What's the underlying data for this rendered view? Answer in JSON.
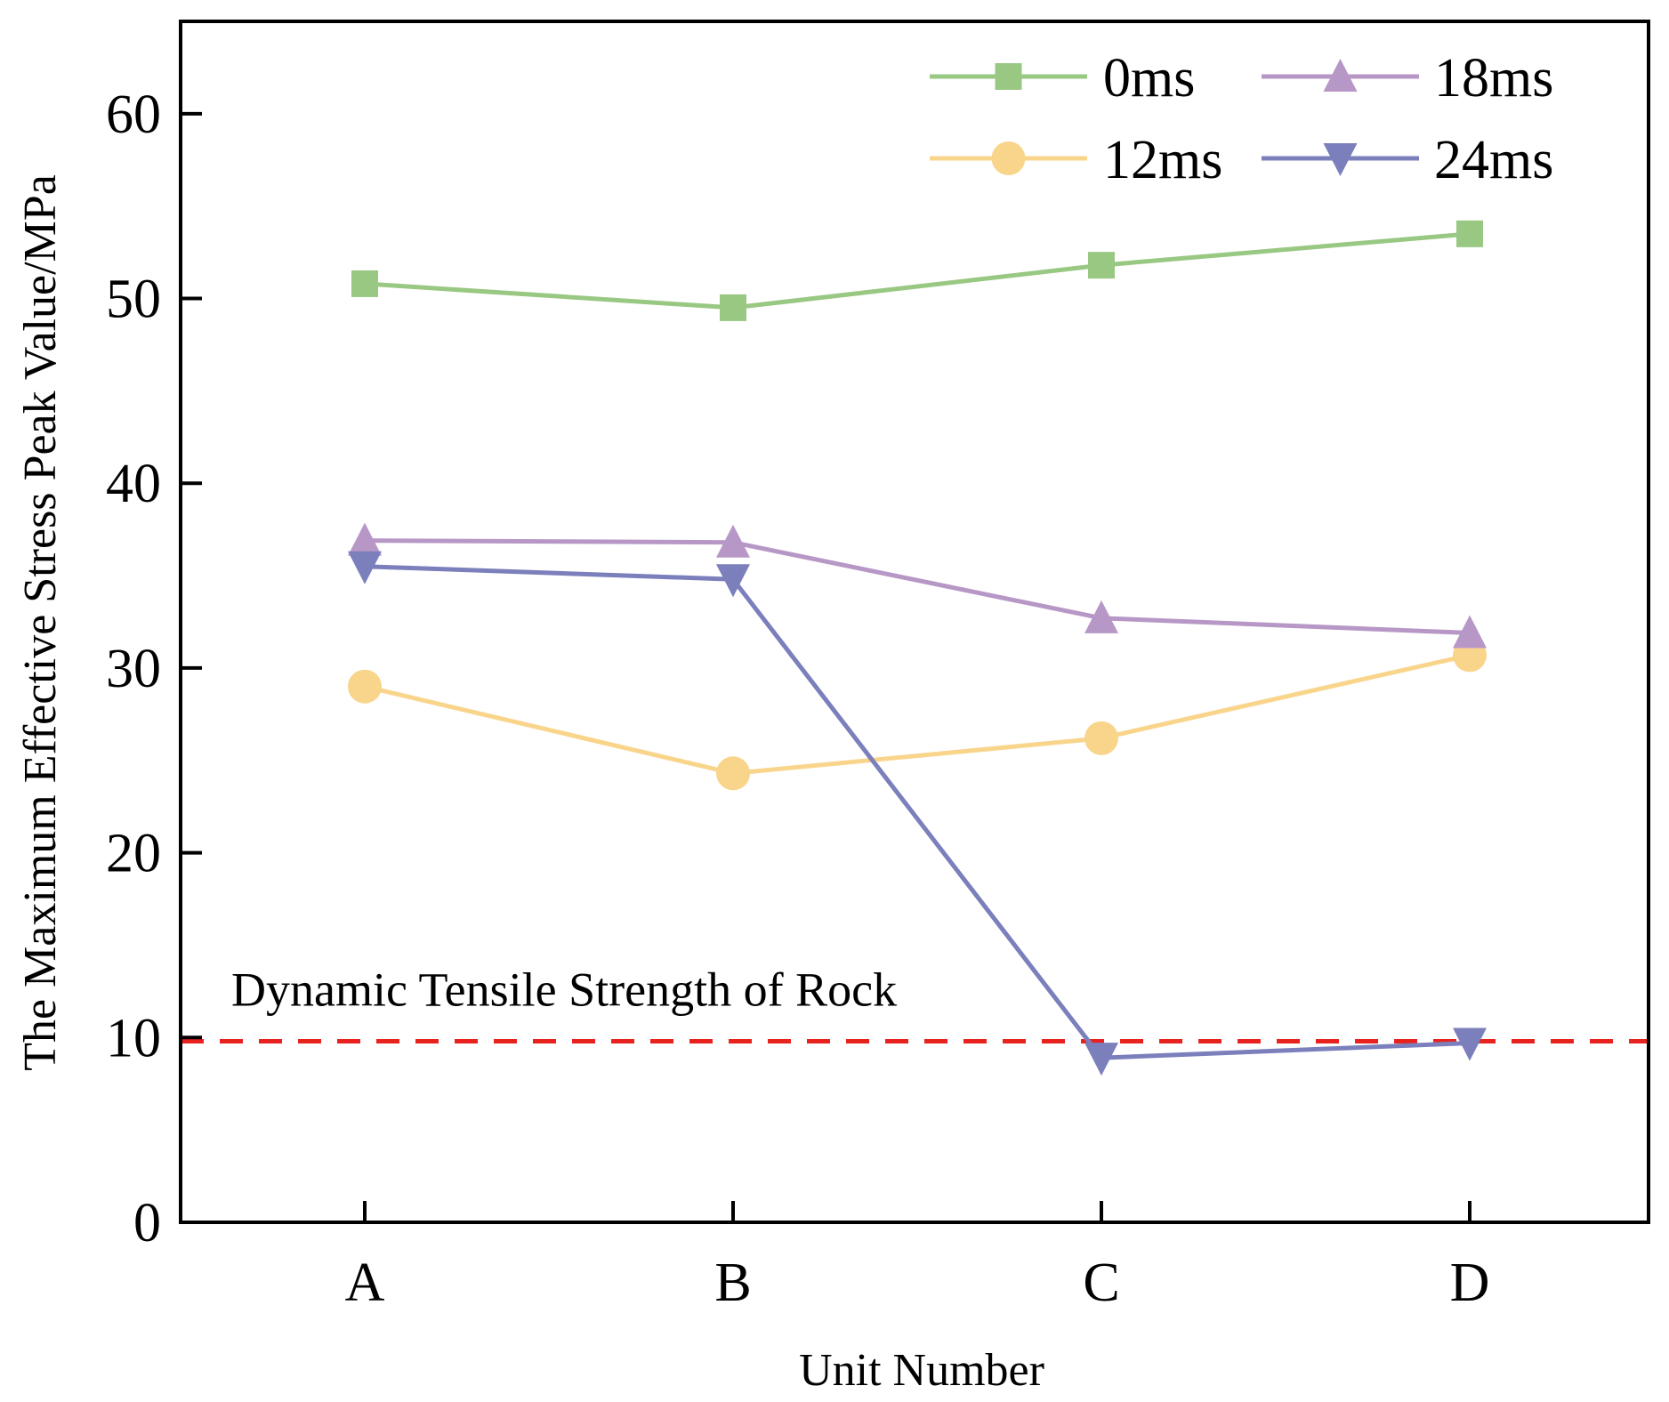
{
  "chart_data": {
    "type": "line",
    "title": "",
    "xlabel": "Unit Number",
    "ylabel": "The Maximum Effective Stress Peak Value/MPa",
    "categories": [
      "A",
      "B",
      "C",
      "D"
    ],
    "ylim": [
      0,
      65
    ],
    "yticks": [
      0,
      10,
      20,
      30,
      40,
      50,
      60
    ],
    "grid": false,
    "legend_position": "top-right",
    "series": [
      {
        "name": "0ms",
        "values": [
          50.8,
          49.5,
          51.8,
          53.5
        ],
        "color": "#99c883",
        "marker": "square"
      },
      {
        "name": "12ms",
        "values": [
          29.0,
          24.3,
          26.2,
          30.7
        ],
        "color": "#f9d58c",
        "marker": "circle"
      },
      {
        "name": "18ms",
        "values": [
          36.9,
          36.8,
          32.7,
          31.9
        ],
        "color": "#b797c6",
        "marker": "triangle-up"
      },
      {
        "name": "24ms",
        "values": [
          35.5,
          34.8,
          8.9,
          9.7
        ],
        "color": "#7b7fbb",
        "marker": "triangle-down"
      }
    ],
    "reference_line": {
      "value": 9.8,
      "label": "Dynamic Tensile Strength of Rock",
      "color": "#e8231f",
      "style": "dashed"
    }
  }
}
